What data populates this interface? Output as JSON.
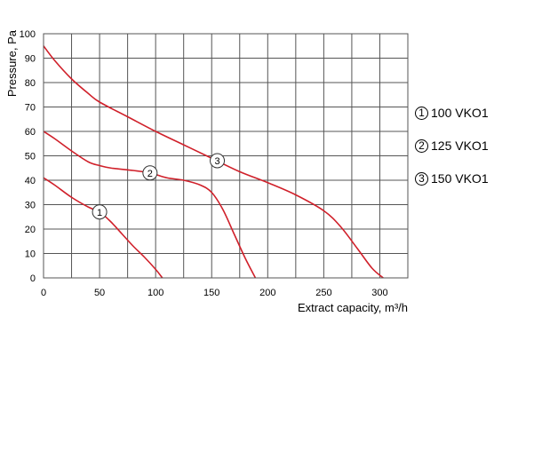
{
  "chart_data": {
    "type": "line",
    "xlabel": "Extract capacity, m³/h",
    "ylabel": "Pressure, Pa",
    "xlim": [
      0,
      325
    ],
    "ylim": [
      0,
      100
    ],
    "x_ticks": [
      0,
      50,
      100,
      150,
      200,
      250,
      300
    ],
    "y_ticks": [
      0,
      10,
      20,
      30,
      40,
      50,
      60,
      70,
      80,
      90,
      100
    ],
    "grid": true,
    "legend_position": "right",
    "line_color": "#d0202a",
    "series": [
      {
        "name": "100 VKO1",
        "marker": "1",
        "marker_at": [
          50,
          27
        ],
        "points": [
          [
            0,
            41
          ],
          [
            10,
            38
          ],
          [
            25,
            33
          ],
          [
            40,
            29
          ],
          [
            50,
            27
          ],
          [
            60,
            23
          ],
          [
            70,
            18
          ],
          [
            80,
            13
          ],
          [
            90,
            8.5
          ],
          [
            100,
            3.5
          ],
          [
            106,
            0
          ]
        ]
      },
      {
        "name": "125 VKO1",
        "marker": "2",
        "marker_at": [
          95,
          43
        ],
        "points": [
          [
            0,
            60
          ],
          [
            10,
            57
          ],
          [
            25,
            52
          ],
          [
            40,
            47.5
          ],
          [
            50,
            46
          ],
          [
            60,
            45
          ],
          [
            80,
            44
          ],
          [
            95,
            43
          ],
          [
            110,
            41
          ],
          [
            125,
            40
          ],
          [
            140,
            38
          ],
          [
            150,
            35
          ],
          [
            160,
            28
          ],
          [
            170,
            18
          ],
          [
            180,
            8
          ],
          [
            189,
            0
          ]
        ]
      },
      {
        "name": "150 VKO1",
        "marker": "3",
        "marker_at": [
          155,
          48
        ],
        "points": [
          [
            0,
            95
          ],
          [
            10,
            89
          ],
          [
            25,
            81.5
          ],
          [
            40,
            75.5
          ],
          [
            50,
            72
          ],
          [
            75,
            66
          ],
          [
            100,
            60
          ],
          [
            125,
            54.5
          ],
          [
            150,
            49
          ],
          [
            175,
            43.5
          ],
          [
            200,
            39
          ],
          [
            225,
            34
          ],
          [
            250,
            27.5
          ],
          [
            265,
            21
          ],
          [
            280,
            12
          ],
          [
            293,
            4
          ],
          [
            303,
            0
          ]
        ]
      }
    ]
  }
}
